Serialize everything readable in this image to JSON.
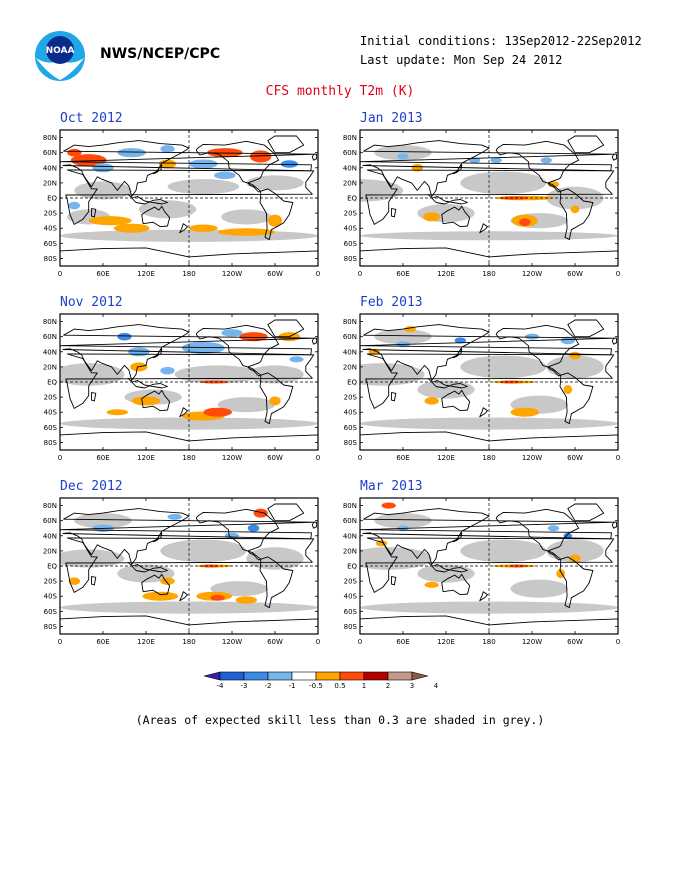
{
  "header": {
    "agency": "NWS/NCEP/CPC",
    "initial_conditions": "Initial conditions: 13Sep2012-22Sep2012",
    "last_update": "Last update: Mon Sep 24 2012",
    "title": "CFS monthly T2m (K)",
    "logo_text": "NOAA"
  },
  "axes": {
    "lat_labels": [
      "80N",
      "60N",
      "40N",
      "20N",
      "EQ",
      "20S",
      "40S",
      "60S",
      "80S"
    ],
    "lon_labels": [
      "0",
      "60E",
      "120E",
      "180",
      "120W",
      "60W",
      "0"
    ]
  },
  "panels": [
    {
      "title": "Oct 2012"
    },
    {
      "title": "Jan 2013"
    },
    {
      "title": "Nov 2012"
    },
    {
      "title": "Feb 2013"
    },
    {
      "title": "Dec 2012"
    },
    {
      "title": "Mar 2013"
    }
  ],
  "colorbar": {
    "labels": [
      "-4",
      "-3",
      "-2",
      "-1",
      "-0.5",
      "0.5",
      "1",
      "2",
      "3",
      "4"
    ],
    "colors": [
      "#3b1fa8",
      "#1f5fd8",
      "#3a8ae8",
      "#76b4ee",
      "#ffffff",
      "#ffa500",
      "#ff4a0a",
      "#b30000",
      "#c29b8a",
      "#8f5a4a"
    ]
  },
  "footnote": "(Areas of expected skill less than 0.3 are shaded in grey.)",
  "colors": {
    "title_red": "#e0001b",
    "panel_title_blue": "#1f3fc9",
    "low_skill_grey": "#c8c8c8"
  }
}
